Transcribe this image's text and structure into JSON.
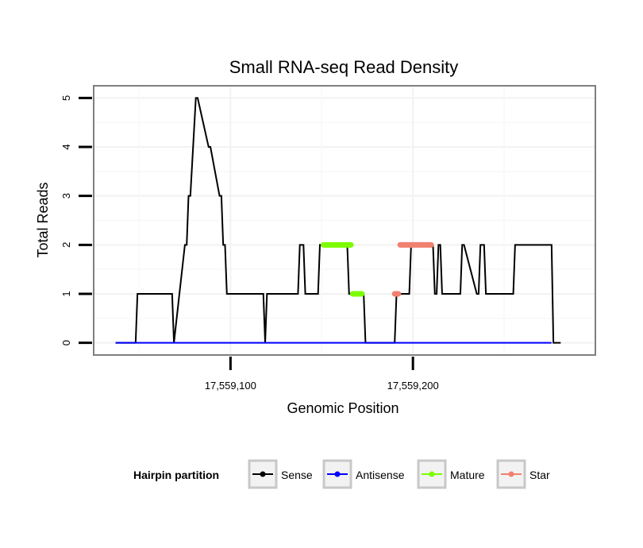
{
  "chart_data": {
    "type": "line",
    "title": "Small RNA-seq Read Density",
    "xlabel": "Genomic Position",
    "ylabel": "Total Reads",
    "xlim": [
      17559025,
      17559300
    ],
    "ylim": [
      -0.25,
      5.25
    ],
    "x_ticks": [
      17559100,
      17559200
    ],
    "x_tick_labels": [
      "17,559,100",
      "17,559,200"
    ],
    "y_ticks": [
      0,
      1,
      2,
      3,
      4,
      5
    ],
    "y_tick_labels": [
      "0",
      "1",
      "2",
      "3",
      "4",
      "5"
    ],
    "grid": true,
    "legend": {
      "title": "Hairpin partition",
      "position": "bottom",
      "entries": [
        {
          "name": "Sense",
          "color": "#000000"
        },
        {
          "name": "Antisense",
          "color": "#0000ff"
        },
        {
          "name": "Mature",
          "color": "#7cfc00"
        },
        {
          "name": "Star",
          "color": "#f08070"
        }
      ]
    },
    "series": [
      {
        "name": "Sense",
        "color": "#000000",
        "width": 2,
        "x": [
          17559037,
          17559048,
          17559049,
          17559068,
          17559069,
          17559075,
          17559076,
          17559077,
          17559078,
          17559081,
          17559082,
          17559088,
          17559089,
          17559094,
          17559095,
          17559096,
          17559097,
          17559098,
          17559118,
          17559119,
          17559120,
          17559137,
          17559138,
          17559140,
          17559141,
          17559148,
          17559149,
          17559164,
          17559165,
          17559173,
          17559174,
          17559190,
          17559191,
          17559198,
          17559199,
          17559211,
          17559212,
          17559213,
          17559214,
          17559215,
          17559216,
          17559226,
          17559227,
          17559228,
          17559235,
          17559236,
          17559237,
          17559239,
          17559240,
          17559255,
          17559256,
          17559276,
          17559277,
          17559281
        ],
        "y": [
          0,
          0,
          1,
          1,
          0,
          2,
          2,
          3,
          3,
          5,
          5,
          4,
          4,
          3,
          3,
          2,
          2,
          1,
          1,
          0,
          1,
          1,
          2,
          2,
          1,
          1,
          2,
          2,
          1,
          1,
          0,
          0,
          1,
          1,
          2,
          2,
          1,
          1,
          2,
          2,
          1,
          1,
          2,
          2,
          1,
          1,
          2,
          2,
          1,
          1,
          2,
          2,
          0,
          0
        ]
      },
      {
        "name": "Antisense",
        "color": "#0000ff",
        "width": 2,
        "x": [
          17559037,
          17559276
        ],
        "y": [
          0,
          0
        ]
      },
      {
        "name": "Mature",
        "color": "#7cfc00",
        "width": 7,
        "segments": [
          {
            "x": [
              17559151,
              17559166
            ],
            "y": [
              2,
              2
            ]
          },
          {
            "x": [
              17559167,
              17559172
            ],
            "y": [
              1,
              1
            ]
          }
        ]
      },
      {
        "name": "Star",
        "color": "#f08070",
        "width": 7,
        "segments": [
          {
            "x": [
              17559190,
              17559192
            ],
            "y": [
              1,
              1
            ]
          },
          {
            "x": [
              17559193,
              17559210
            ],
            "y": [
              2,
              2
            ]
          }
        ]
      }
    ]
  }
}
